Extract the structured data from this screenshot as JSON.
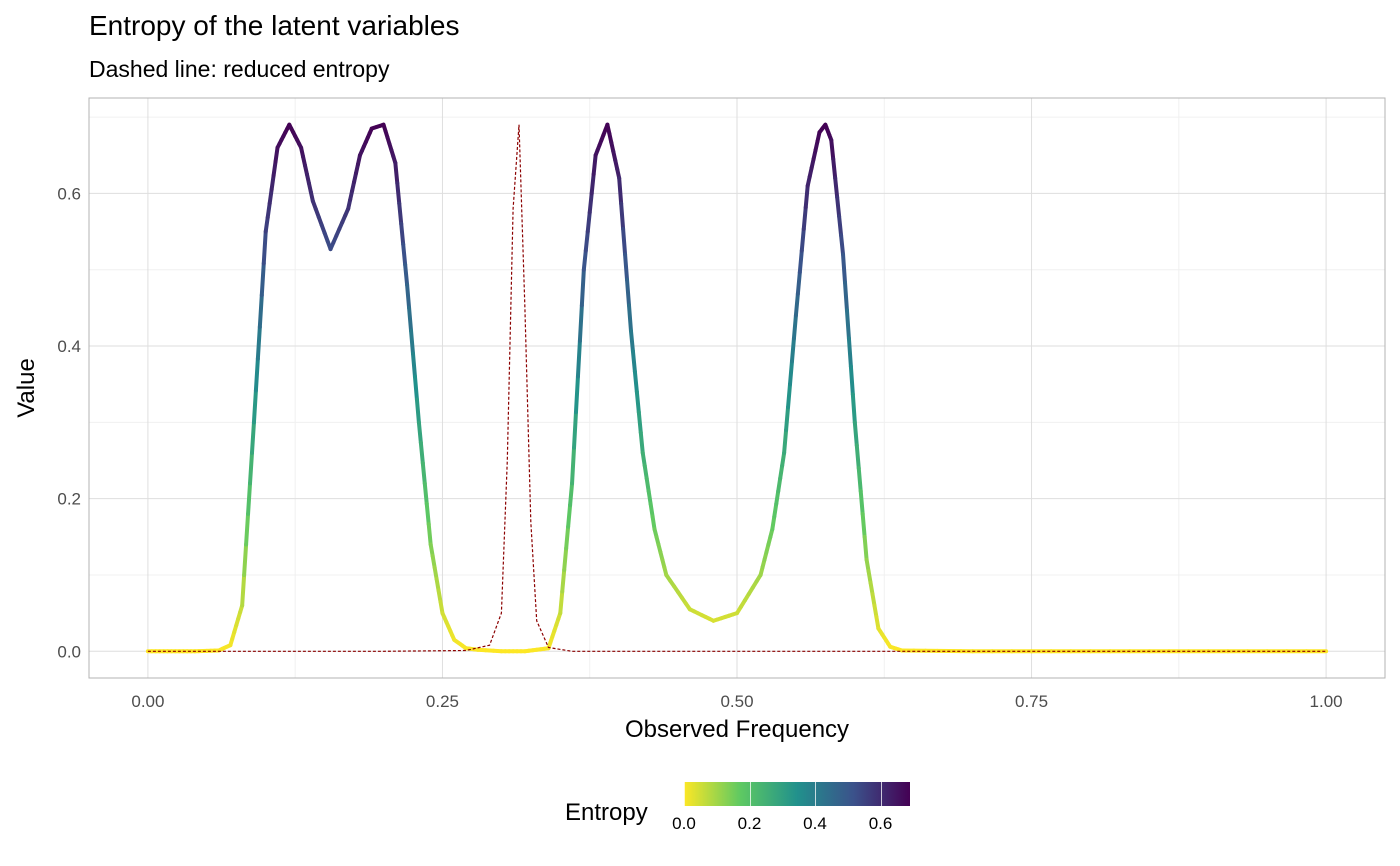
{
  "header": {
    "title": "Entropy of the latent variables",
    "subtitle": "Dashed line: reduced entropy"
  },
  "chart_data": {
    "type": "line",
    "title": "Entropy of the latent variables",
    "subtitle": "Dashed line: reduced entropy",
    "xlabel": "Observed Frequency",
    "ylabel": "Value",
    "xlim": [
      -0.05,
      1.05
    ],
    "ylim": [
      -0.035,
      0.725
    ],
    "x_ticks": [
      0.0,
      0.25,
      0.5,
      0.75,
      1.0
    ],
    "x_tick_labels": [
      "0.00",
      "0.25",
      "0.50",
      "0.75",
      "1.00"
    ],
    "y_ticks": [
      0.0,
      0.2,
      0.4,
      0.6
    ],
    "y_tick_labels": [
      "0.0",
      "0.2",
      "0.4",
      "0.6"
    ],
    "grid": true,
    "series": [
      {
        "style": "solid-gradient",
        "x": [
          0.0,
          0.02,
          0.04,
          0.06,
          0.07,
          0.08,
          0.09,
          0.1,
          0.11,
          0.12,
          0.13,
          0.14,
          0.155,
          0.17,
          0.18,
          0.19,
          0.2,
          0.21,
          0.22,
          0.23,
          0.24,
          0.25,
          0.26,
          0.27,
          0.28,
          0.3,
          0.32,
          0.34,
          0.35,
          0.36,
          0.37,
          0.38,
          0.39,
          0.4,
          0.41,
          0.42,
          0.43,
          0.44,
          0.46,
          0.48,
          0.5,
          0.52,
          0.53,
          0.54,
          0.55,
          0.56,
          0.57,
          0.575,
          0.58,
          0.59,
          0.6,
          0.61,
          0.62,
          0.63,
          0.64,
          0.7,
          0.8,
          0.9,
          1.0
        ],
        "values": [
          0.0,
          0.0,
          0.0,
          0.001,
          0.008,
          0.06,
          0.3,
          0.55,
          0.66,
          0.69,
          0.66,
          0.59,
          0.527,
          0.58,
          0.65,
          0.685,
          0.69,
          0.64,
          0.48,
          0.3,
          0.14,
          0.05,
          0.015,
          0.004,
          0.002,
          0.0,
          0.0,
          0.004,
          0.05,
          0.22,
          0.5,
          0.65,
          0.69,
          0.62,
          0.42,
          0.26,
          0.16,
          0.1,
          0.055,
          0.04,
          0.05,
          0.1,
          0.16,
          0.26,
          0.44,
          0.61,
          0.68,
          0.69,
          0.67,
          0.52,
          0.3,
          0.12,
          0.03,
          0.006,
          0.001,
          0.0,
          0.0,
          0.0,
          0.0
        ],
        "color_scale": "viridis",
        "color_legend": {
          "title": "Entropy",
          "ticks": [
            0.0,
            0.2,
            0.4,
            0.6
          ],
          "tick_labels": [
            "0.0",
            "0.2",
            "0.4",
            "0.6"
          ],
          "range": [
            0.0,
            0.69
          ]
        }
      },
      {
        "style": "dashed",
        "color": "#8B0000",
        "x": [
          0.0,
          0.1,
          0.2,
          0.27,
          0.29,
          0.3,
          0.305,
          0.31,
          0.315,
          0.32,
          0.325,
          0.33,
          0.34,
          0.36,
          0.5,
          0.75,
          1.0
        ],
        "values": [
          0.0,
          0.0,
          0.0,
          0.001,
          0.008,
          0.05,
          0.25,
          0.58,
          0.69,
          0.45,
          0.17,
          0.04,
          0.005,
          0.0,
          0.0,
          0.0,
          0.0
        ]
      }
    ]
  }
}
